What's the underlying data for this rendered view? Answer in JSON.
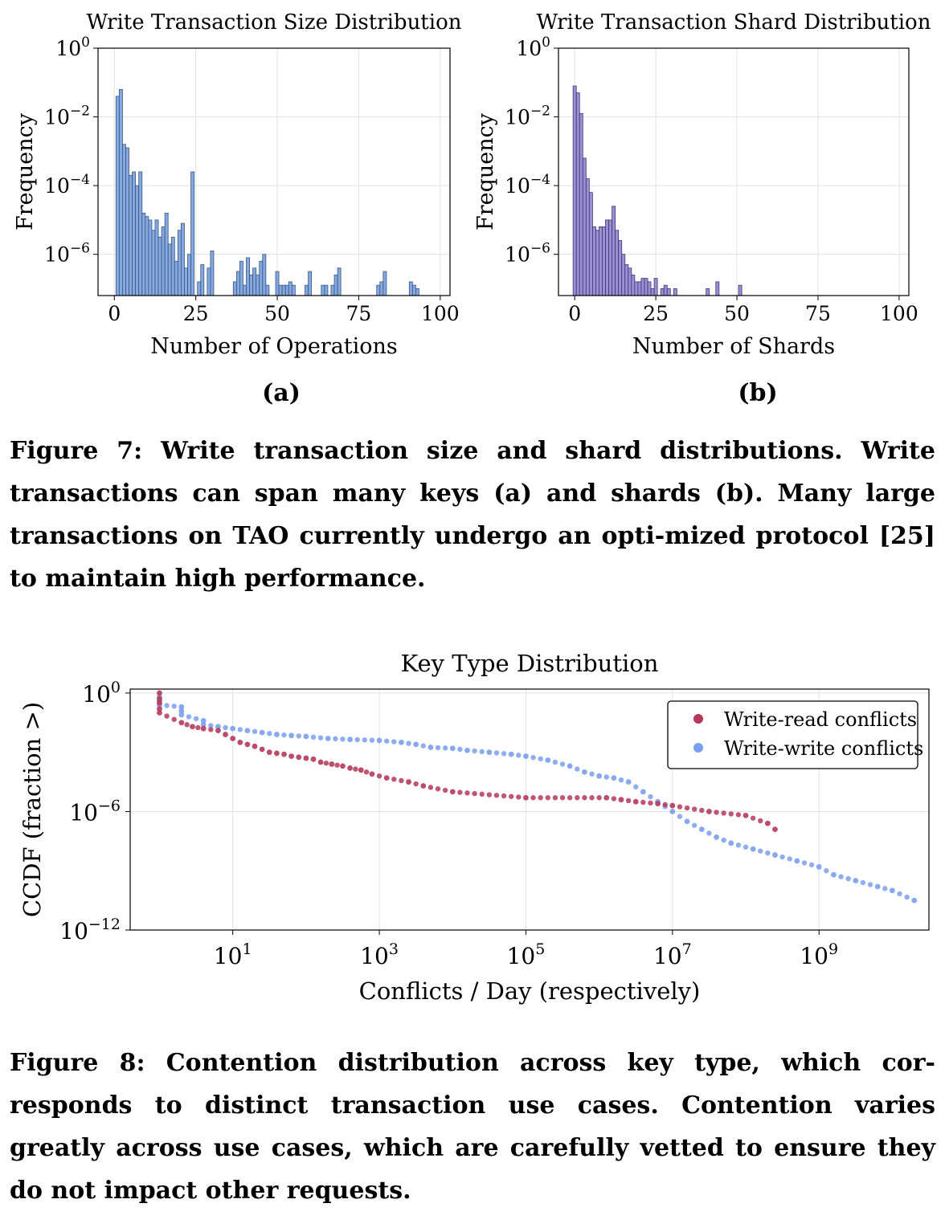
{
  "chart_data": [
    {
      "id": "a",
      "type": "bar",
      "title": "Write Transaction Size Distribution",
      "xlabel": "Number of Operations",
      "ylabel": "Frequency",
      "xlim": [
        -5,
        103
      ],
      "ylim_log10": [
        -7.2,
        0
      ],
      "yscale": "log",
      "yticks": [
        0,
        -2,
        -4,
        -6
      ],
      "xticks": [
        0,
        25,
        50,
        75,
        100
      ],
      "grid": true,
      "color": "#84a8e0",
      "edge": "#3b5680",
      "bins_x": [
        1,
        2,
        3,
        4,
        5,
        6,
        7,
        8,
        9,
        10,
        11,
        12,
        13,
        14,
        15,
        16,
        17,
        18,
        19,
        20,
        21,
        22,
        23,
        24,
        25,
        26,
        27,
        28,
        29,
        30,
        31,
        32,
        33,
        34,
        35,
        36,
        37,
        38,
        39,
        40,
        41,
        42,
        43,
        44,
        45,
        46,
        47,
        48,
        49,
        50,
        51,
        52,
        53,
        54,
        55,
        56,
        57,
        58,
        59,
        60,
        61,
        62,
        63,
        64,
        65,
        66,
        67,
        68,
        69,
        70,
        71,
        72,
        73,
        74,
        75,
        76,
        77,
        78,
        79,
        80,
        81,
        82,
        83,
        84,
        85,
        86,
        87,
        88,
        89,
        90,
        91,
        92,
        93,
        94,
        95,
        96,
        97,
        98
      ],
      "bins_log10": [
        -1.4,
        -1.2,
        -2.8,
        -2.9,
        -3.7,
        -3.6,
        -4.0,
        -3.6,
        -4.8,
        -4.9,
        -5.0,
        -5.3,
        -5.0,
        -5.5,
        -5.2,
        -4.8,
        -5.7,
        -5.5,
        -6.2,
        -5.3,
        -5.1,
        -6.4,
        -6.0,
        -3.6,
        -7.2,
        -6.8,
        -6.3,
        -7.2,
        -6.4,
        -5.9,
        -7.2,
        -7.2,
        -7.2,
        -7.2,
        -7.2,
        -7.2,
        -6.8,
        -6.5,
        -6.2,
        -6.9,
        -6.1,
        -6.6,
        -6.4,
        -6.6,
        -6.2,
        -6.0,
        -6.9,
        -7.2,
        -7.2,
        -6.5,
        -6.9,
        -6.9,
        -6.9,
        -6.8,
        -6.9,
        -7.2,
        -7.2,
        -7.2,
        -6.9,
        -6.5,
        -7.2,
        -7.2,
        -7.2,
        -6.9,
        -6.9,
        -7.2,
        -6.9,
        -6.6,
        -6.4,
        -7.2,
        -7.2,
        -7.2,
        -7.2,
        -7.2,
        -7.2,
        -7.2,
        -7.2,
        -7.2,
        -7.2,
        -7.2,
        -6.9,
        -6.8,
        -6.5,
        -7.2,
        -7.2,
        -7.2,
        -7.2,
        -7.2,
        -7.2,
        -7.2,
        -6.8,
        -6.9,
        -7.0,
        -7.2,
        -7.2,
        -7.2,
        -7.2,
        -7.2
      ]
    },
    {
      "id": "b",
      "type": "bar",
      "title": "Write Transaction Shard Distribution",
      "xlabel": "Number of Shards",
      "ylabel": "Frequency",
      "xlim": [
        -5,
        103
      ],
      "ylim_log10": [
        -7.2,
        0
      ],
      "yscale": "log",
      "yticks": [
        0,
        -2,
        -4,
        -6
      ],
      "xticks": [
        0,
        25,
        50,
        75,
        100
      ],
      "grid": true,
      "color": "#9b8fd4",
      "edge": "#3d3570",
      "bins_x": [
        0,
        1,
        2,
        3,
        4,
        5,
        6,
        7,
        8,
        9,
        10,
        11,
        12,
        13,
        14,
        15,
        16,
        17,
        18,
        19,
        20,
        21,
        22,
        23,
        24,
        25,
        26,
        27,
        28,
        29,
        30,
        31,
        32,
        40,
        41,
        43,
        44,
        45,
        46,
        50,
        51,
        52
      ],
      "bins_log10": [
        -1.1,
        -1.3,
        -1.9,
        -3.2,
        -3.8,
        -4.2,
        -5.2,
        -5.3,
        -5.2,
        -5.2,
        -5.0,
        -5.0,
        -4.6,
        -5.3,
        -5.6,
        -6.0,
        -6.3,
        -6.4,
        -6.6,
        -6.8,
        -6.8,
        -6.7,
        -6.7,
        -6.8,
        -7.0,
        -6.7,
        -7.2,
        -7.0,
        -6.9,
        -7.0,
        -7.2,
        -7.0,
        -7.2,
        -7.2,
        -7.0,
        -7.2,
        -6.8,
        -7.2,
        -7.2,
        -7.2,
        -6.9,
        -7.2
      ]
    },
    {
      "id": "c",
      "type": "scatter",
      "title": "Key Type Distribution",
      "xlabel": "Conflicts / Day (respectively)",
      "ylabel": "CCDF (fraction >)",
      "xscale": "log",
      "yscale": "log",
      "xlim_log10": [
        -0.4,
        10.5
      ],
      "ylim_log10": [
        -12,
        0.2
      ],
      "xticks": [
        1,
        3,
        5,
        7,
        9
      ],
      "yticks": [
        0,
        -6,
        -12
      ],
      "legend": "top-right",
      "grid": true,
      "series": [
        {
          "name": "Write-read conflicts",
          "color": "#b5385a",
          "points_log10": [
            [
              0,
              0
            ],
            [
              0,
              -0.3
            ],
            [
              0,
              -0.5
            ],
            [
              0,
              -0.8
            ],
            [
              0,
              -1.0
            ],
            [
              0.3,
              -1.5
            ],
            [
              0.45,
              -1.7
            ],
            [
              0.6,
              -1.8
            ],
            [
              0.8,
              -1.9
            ],
            [
              0.9,
              -2.1
            ],
            [
              1.0,
              -2.3
            ],
            [
              1.1,
              -2.5
            ],
            [
              1.2,
              -2.6
            ],
            [
              1.3,
              -2.7
            ],
            [
              1.4,
              -2.85
            ],
            [
              1.5,
              -3.0
            ],
            [
              1.6,
              -3.05
            ],
            [
              1.7,
              -3.1
            ],
            [
              1.8,
              -3.2
            ],
            [
              1.9,
              -3.25
            ],
            [
              2.0,
              -3.3
            ],
            [
              2.1,
              -3.35
            ],
            [
              2.2,
              -3.5
            ],
            [
              2.35,
              -3.6
            ],
            [
              2.5,
              -3.7
            ],
            [
              2.6,
              -3.8
            ],
            [
              2.75,
              -3.9
            ],
            [
              2.9,
              -4.1
            ],
            [
              3.1,
              -4.3
            ],
            [
              3.4,
              -4.5
            ],
            [
              3.6,
              -4.7
            ],
            [
              4.0,
              -5.0
            ],
            [
              5.0,
              -5.3
            ],
            [
              6.1,
              -5.3
            ],
            [
              6.3,
              -5.4
            ],
            [
              6.5,
              -5.5
            ],
            [
              6.8,
              -5.6
            ],
            [
              7.0,
              -5.7
            ],
            [
              7.5,
              -6.0
            ],
            [
              8.0,
              -6.2
            ],
            [
              8.3,
              -6.6
            ],
            [
              8.4,
              -6.9
            ]
          ],
          "points_note": ""
        },
        {
          "name": "Write-write conflicts",
          "color": "#7a9ff0",
          "points_log10": [
            [
              0,
              -0.2
            ],
            [
              0,
              -0.4
            ],
            [
              0,
              -0.6
            ],
            [
              0.3,
              -0.7
            ],
            [
              0.3,
              -0.9
            ],
            [
              0.3,
              -1.1
            ],
            [
              0.6,
              -1.4
            ],
            [
              0.6,
              -1.6
            ],
            [
              0.8,
              -1.7
            ],
            [
              1.0,
              -1.8
            ],
            [
              1.2,
              -1.9
            ],
            [
              1.4,
              -2.0
            ],
            [
              1.6,
              -2.1
            ],
            [
              1.8,
              -2.15
            ],
            [
              2.0,
              -2.2
            ],
            [
              2.3,
              -2.3
            ],
            [
              2.6,
              -2.35
            ],
            [
              3.0,
              -2.4
            ],
            [
              3.3,
              -2.5
            ],
            [
              3.5,
              -2.6
            ],
            [
              3.7,
              -2.75
            ],
            [
              4.0,
              -2.8
            ],
            [
              4.2,
              -2.9
            ],
            [
              4.5,
              -3.0
            ],
            [
              4.8,
              -3.1
            ],
            [
              5.0,
              -3.2
            ],
            [
              5.3,
              -3.4
            ],
            [
              5.6,
              -3.7
            ],
            [
              5.8,
              -4.0
            ],
            [
              6.0,
              -4.2
            ],
            [
              6.2,
              -4.3
            ],
            [
              6.4,
              -4.5
            ],
            [
              6.6,
              -5.0
            ],
            [
              6.8,
              -5.5
            ],
            [
              7.0,
              -6.0
            ],
            [
              7.2,
              -6.5
            ],
            [
              7.4,
              -6.9
            ],
            [
              7.6,
              -7.3
            ],
            [
              7.8,
              -7.6
            ],
            [
              8.1,
              -7.9
            ],
            [
              8.4,
              -8.2
            ],
            [
              8.7,
              -8.5
            ],
            [
              9.0,
              -8.8
            ],
            [
              9.2,
              -9.2
            ],
            [
              9.5,
              -9.5
            ],
            [
              9.8,
              -9.8
            ],
            [
              10.0,
              -10.0
            ],
            [
              10.3,
              -10.5
            ]
          ],
          "points_note": ""
        }
      ]
    }
  ],
  "panels": {
    "a": "(a)",
    "b": "(b)"
  },
  "captions": {
    "fig7": "Figure 7: Write transaction size and shard distributions. Write transactions can span many keys (a) and shards (b). Many large transactions on TAO currently undergo an opti-mized protocol [25] to maintain high performance.",
    "fig8": "Figure 8: Contention distribution across key type, which cor-responds to distinct transaction use cases. Contention varies greatly across use cases, which are carefully vetted to ensure they do not impact other requests."
  }
}
